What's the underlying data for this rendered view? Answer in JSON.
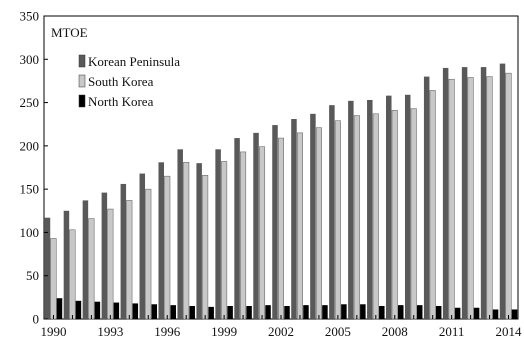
{
  "chart_data": {
    "type": "bar",
    "unit_label": "MTOE",
    "ylim": [
      0,
      350
    ],
    "yticks": [
      0,
      50,
      100,
      150,
      200,
      250,
      300,
      350
    ],
    "xtick_labels": [
      "1990",
      "1993",
      "1996",
      "1999",
      "2002",
      "2005",
      "2008",
      "2011",
      "2014"
    ],
    "categories": [
      "1990",
      "1991",
      "1992",
      "1993",
      "1994",
      "1995",
      "1996",
      "1997",
      "1998",
      "1999",
      "2000",
      "2001",
      "2002",
      "2003",
      "2004",
      "2005",
      "2006",
      "2007",
      "2008",
      "2009",
      "2010",
      "2011",
      "2012",
      "2013",
      "2014"
    ],
    "series": [
      {
        "name": "Korean Peninsula",
        "color": "#595959",
        "values": [
          117,
          125,
          137,
          146,
          156,
          168,
          181,
          196,
          180,
          196,
          209,
          215,
          224,
          231,
          237,
          247,
          252,
          253,
          258,
          259,
          280,
          290,
          291,
          291,
          295
        ]
      },
      {
        "name": "South Korea",
        "color": "#c8c8c8",
        "values": [
          93,
          103,
          116,
          127,
          137,
          150,
          165,
          181,
          166,
          182,
          193,
          199,
          209,
          215,
          221,
          229,
          235,
          237,
          241,
          243,
          264,
          277,
          279,
          280,
          284
        ]
      },
      {
        "name": "North Korea",
        "color": "#000000",
        "values": [
          24,
          21,
          20,
          19,
          18,
          17,
          16,
          15,
          14,
          15,
          15,
          16,
          15,
          16,
          16,
          17,
          17,
          15,
          16,
          16,
          15,
          13,
          13,
          11,
          11
        ]
      }
    ],
    "legend_placement": "top-left",
    "grid": false
  }
}
